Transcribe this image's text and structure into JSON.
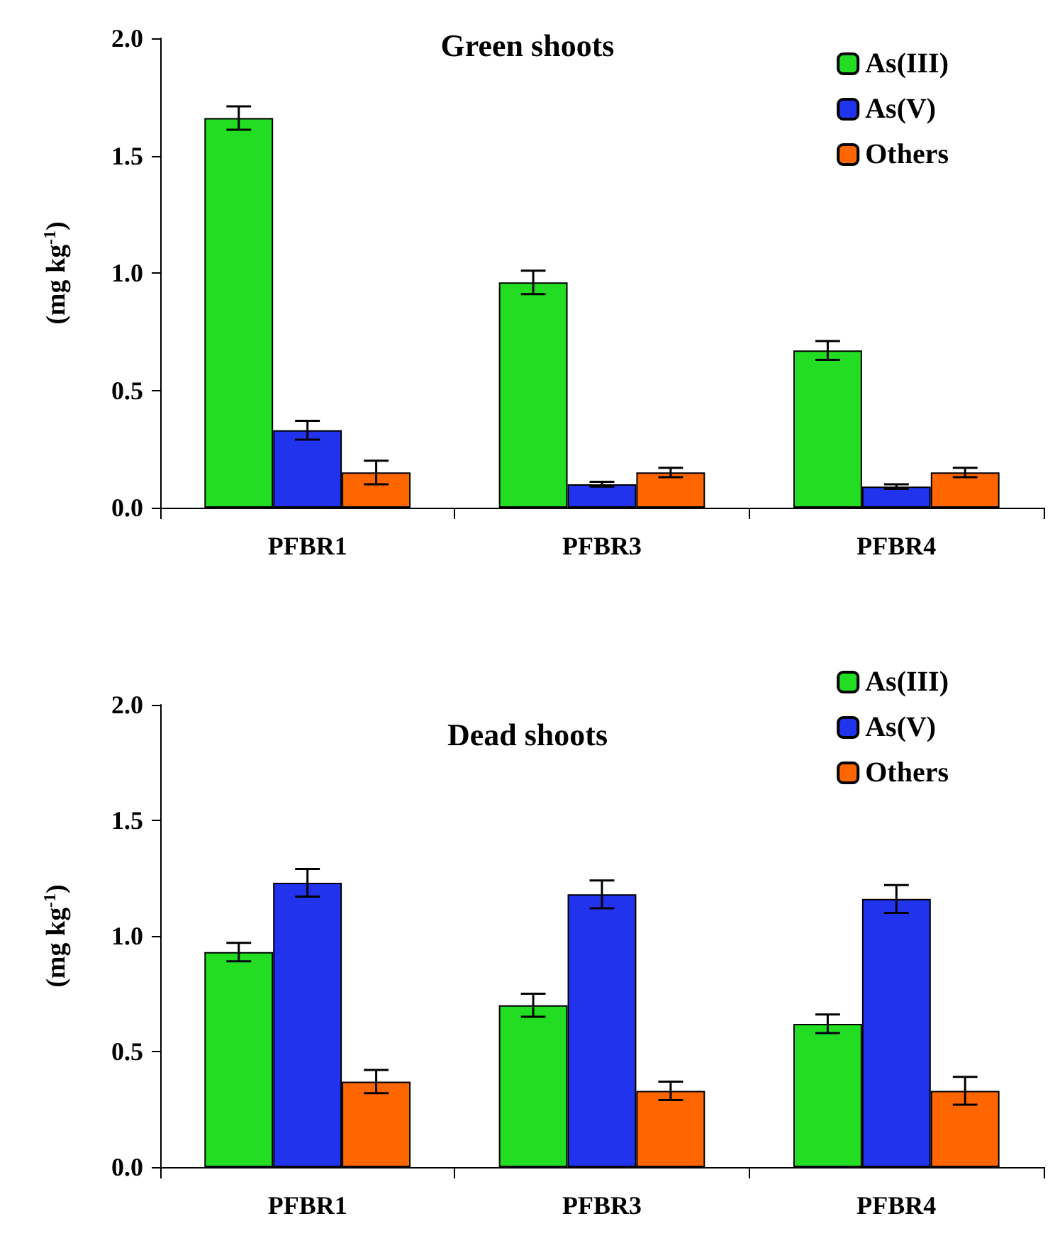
{
  "chart_data": [
    {
      "type": "bar",
      "title": "Green shoots",
      "ylabel": "(mg kg$^{-1}$)",
      "categories": [
        "PFBR1",
        "PFBR3",
        "PFBR4"
      ],
      "series": [
        {
          "name": "As(III)",
          "color": "#22dd22",
          "values": [
            1.66,
            0.96,
            0.67
          ],
          "errors": [
            0.05,
            0.05,
            0.04
          ]
        },
        {
          "name": "As(V)",
          "color": "#2233ee",
          "values": [
            0.33,
            0.1,
            0.09
          ],
          "errors": [
            0.04,
            0.01,
            0.01
          ]
        },
        {
          "name": "Others",
          "color": "#ff6600",
          "values": [
            0.15,
            0.15,
            0.15
          ],
          "errors": [
            0.05,
            0.02,
            0.02
          ]
        }
      ],
      "ylim": [
        0,
        2.0
      ],
      "yticks": [
        {
          "value": 0,
          "label": "0.0"
        },
        {
          "value": 0.5,
          "label": "0.5"
        },
        {
          "value": 1,
          "label": "1.0"
        },
        {
          "value": 1.5,
          "label": "1.5"
        },
        {
          "value": 2,
          "label": "2.0"
        }
      ],
      "grid": false,
      "legend": "top right"
    },
    {
      "type": "bar",
      "title": "Dead shoots",
      "ylabel": "(mg kg$^{-1}$)",
      "categories": [
        "PFBR1",
        "PFBR3",
        "PFBR4"
      ],
      "series": [
        {
          "name": "As(III)",
          "color": "#22dd22",
          "values": [
            0.93,
            0.7,
            0.62
          ],
          "errors": [
            0.04,
            0.05,
            0.04
          ]
        },
        {
          "name": "As(V)",
          "color": "#2233ee",
          "values": [
            1.23,
            1.18,
            1.16
          ],
          "errors": [
            0.06,
            0.06,
            0.06
          ]
        },
        {
          "name": "Others",
          "color": "#ff6600",
          "values": [
            0.37,
            0.33,
            0.33
          ],
          "errors": [
            0.05,
            0.04,
            0.06
          ]
        }
      ],
      "ylim": [
        0,
        2.0
      ],
      "yticks": [
        {
          "value": 0,
          "label": "0.0"
        },
        {
          "value": 0.5,
          "label": "0.5"
        },
        {
          "value": 1,
          "label": "1.0"
        },
        {
          "value": 1.5,
          "label": "1.5"
        },
        {
          "value": 2,
          "label": "2.0"
        }
      ],
      "grid": false,
      "legend": "top right"
    }
  ]
}
